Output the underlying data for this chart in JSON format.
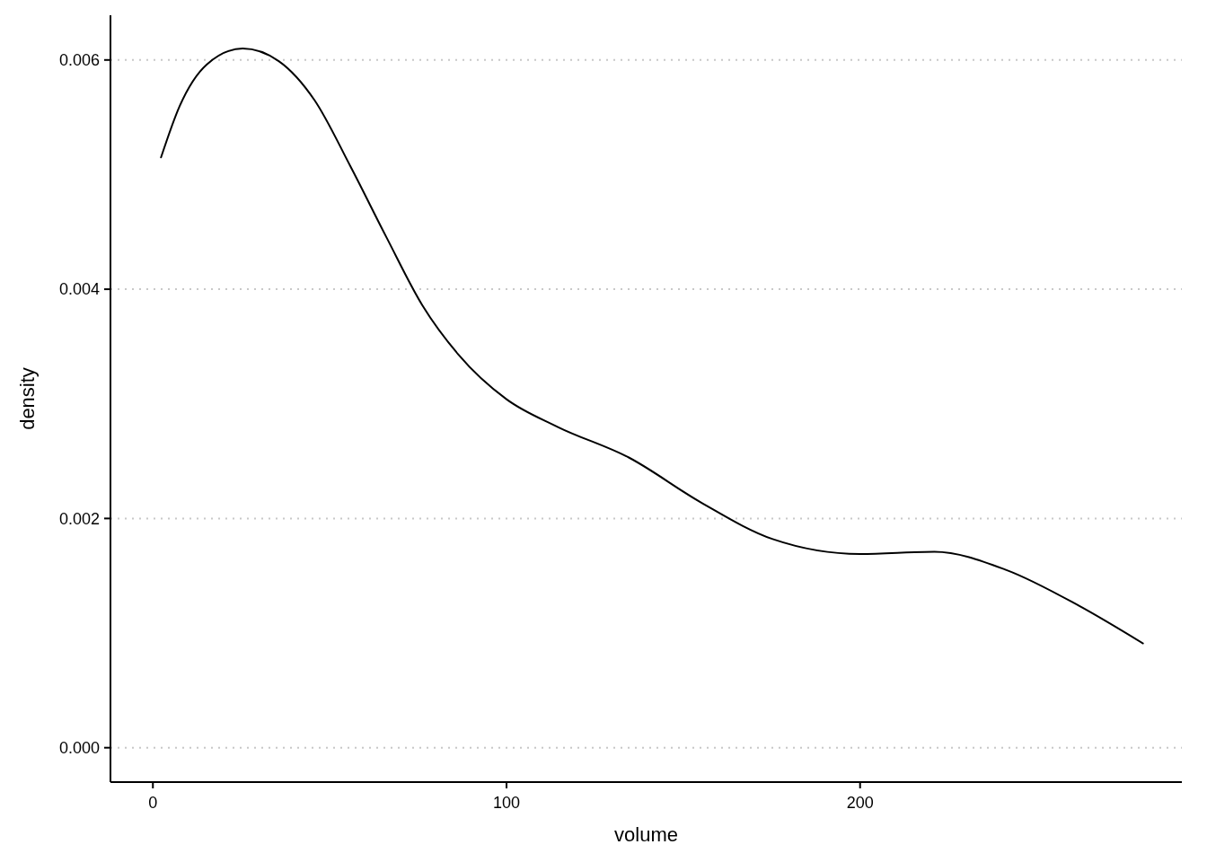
{
  "chart_data": {
    "type": "line",
    "xlabel": "volume",
    "ylabel": "density",
    "x": [
      2.3,
      7.6,
      15.2,
      25.4,
      35.6,
      45.7,
      55.9,
      66.1,
      76.2,
      86.4,
      100,
      114.4,
      134.7,
      155,
      175.3,
      200,
      221,
      241.4,
      261.8,
      280
    ],
    "series": [
      {
        "color": "#000000",
        "values": [
          0.00515,
          0.0056,
          0.00596,
          0.0061,
          0.00599,
          0.00565,
          0.00507,
          0.00445,
          0.00386,
          0.00343,
          0.00304,
          0.0028,
          0.00253,
          0.00214,
          0.00182,
          0.00169,
          0.00171,
          0.00155,
          0.00124,
          0.00091
        ]
      }
    ],
    "xlim": [
      -12,
      291
    ],
    "xticks": [
      0,
      100,
      200
    ],
    "ylim": [
      -0.0003,
      0.00639
    ],
    "yticks": [
      {
        "value": 0,
        "label": "0.000"
      },
      {
        "value": 0.002,
        "label": "0.002"
      },
      {
        "value": 0.004,
        "label": "0.004"
      },
      {
        "value": 0.006,
        "label": "0.006"
      }
    ],
    "grid": "y",
    "marker": "none",
    "line_style": "solid"
  }
}
